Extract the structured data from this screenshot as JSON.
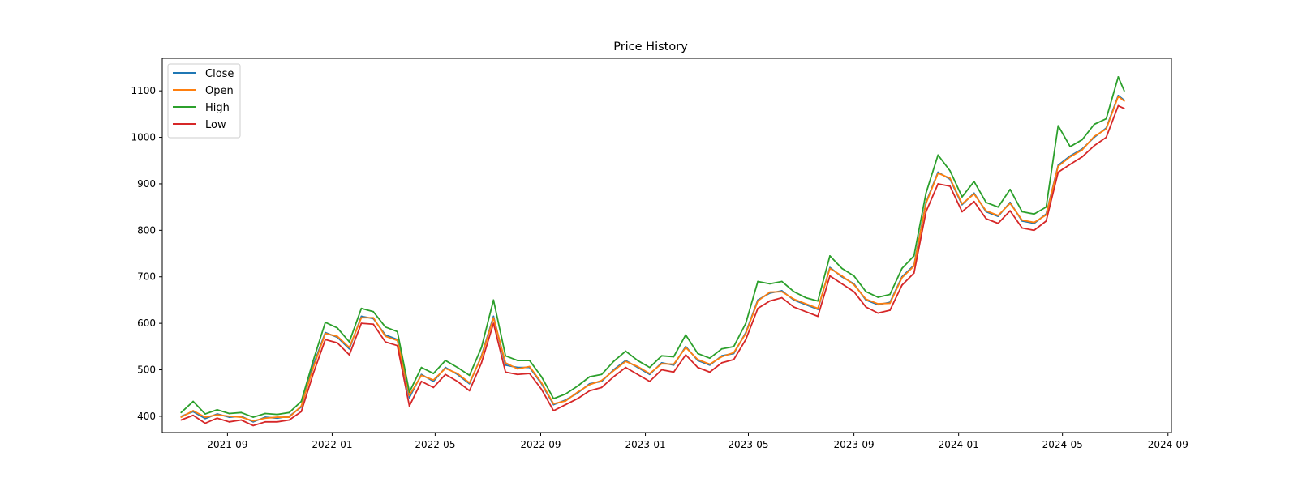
{
  "chart_data": {
    "type": "line",
    "title": "Price History",
    "xlabel": "",
    "ylabel": "",
    "xlim": [
      "2021-06-17",
      "2024-09-05"
    ],
    "ylim": [
      365,
      1170
    ],
    "x_ticks": [
      "2021-09",
      "2022-01",
      "2022-05",
      "2022-09",
      "2023-01",
      "2023-05",
      "2023-09",
      "2024-01",
      "2024-05",
      "2024-09"
    ],
    "y_ticks": [
      400,
      500,
      600,
      700,
      800,
      900,
      1000,
      1100
    ],
    "grid": false,
    "legend_position": "top-left",
    "x": [
      "2021-07-09",
      "2021-07-23",
      "2021-08-06",
      "2021-08-20",
      "2021-09-03",
      "2021-09-17",
      "2021-10-01",
      "2021-10-15",
      "2021-10-29",
      "2021-11-12",
      "2021-11-26",
      "2021-12-10",
      "2021-12-24",
      "2022-01-07",
      "2022-01-21",
      "2022-02-04",
      "2022-02-18",
      "2022-03-04",
      "2022-03-18",
      "2022-04-01",
      "2022-04-15",
      "2022-04-29",
      "2022-05-13",
      "2022-05-27",
      "2022-06-10",
      "2022-06-24",
      "2022-07-08",
      "2022-07-22",
      "2022-08-05",
      "2022-08-19",
      "2022-09-02",
      "2022-09-16",
      "2022-09-30",
      "2022-10-14",
      "2022-10-28",
      "2022-11-11",
      "2022-11-25",
      "2022-12-09",
      "2022-12-23",
      "2023-01-06",
      "2023-01-20",
      "2023-02-03",
      "2023-02-17",
      "2023-03-03",
      "2023-03-17",
      "2023-03-31",
      "2023-04-14",
      "2023-04-28",
      "2023-05-12",
      "2023-05-26",
      "2023-06-09",
      "2023-06-23",
      "2023-07-07",
      "2023-07-21",
      "2023-08-04",
      "2023-08-18",
      "2023-09-01",
      "2023-09-15",
      "2023-09-29",
      "2023-10-13",
      "2023-10-27",
      "2023-11-10",
      "2023-11-24",
      "2023-12-08",
      "2023-12-22",
      "2024-01-05",
      "2024-01-19",
      "2024-02-02",
      "2024-02-16",
      "2024-03-01",
      "2024-03-15",
      "2024-03-29",
      "2024-04-12",
      "2024-04-26",
      "2024-05-10",
      "2024-05-24",
      "2024-06-07",
      "2024-06-21",
      "2024-07-05",
      "2024-07-12"
    ],
    "series": [
      {
        "name": "Close",
        "color": "#1f77b4",
        "values": [
          400,
          410,
          395,
          405,
          398,
          400,
          388,
          398,
          396,
          400,
          420,
          510,
          580,
          570,
          545,
          615,
          610,
          575,
          565,
          440,
          490,
          475,
          505,
          490,
          470,
          530,
          615,
          510,
          505,
          505,
          470,
          425,
          435,
          450,
          470,
          475,
          500,
          520,
          505,
          490,
          515,
          510,
          550,
          520,
          510,
          530,
          535,
          580,
          650,
          665,
          670,
          650,
          640,
          630,
          720,
          700,
          685,
          650,
          640,
          645,
          700,
          725,
          860,
          925,
          910,
          855,
          880,
          840,
          830,
          860,
          820,
          815,
          835,
          940,
          960,
          975,
          1000,
          1020,
          1090,
          1080
        ]
      },
      {
        "name": "Open",
        "color": "#ff7f0e",
        "values": [
          398,
          412,
          398,
          403,
          400,
          398,
          390,
          396,
          398,
          398,
          422,
          505,
          578,
          572,
          548,
          612,
          612,
          572,
          563,
          445,
          488,
          478,
          503,
          492,
          472,
          528,
          612,
          515,
          502,
          507,
          472,
          427,
          433,
          452,
          468,
          477,
          498,
          518,
          507,
          492,
          513,
          512,
          548,
          522,
          512,
          528,
          537,
          578,
          648,
          667,
          668,
          652,
          642,
          632,
          718,
          702,
          683,
          652,
          642,
          643,
          698,
          723,
          858,
          923,
          912,
          857,
          878,
          842,
          832,
          858,
          822,
          817,
          833,
          938,
          958,
          973,
          1002,
          1018,
          1088,
          1078
        ]
      },
      {
        "name": "High",
        "color": "#2ca02c",
        "values": [
          408,
          432,
          405,
          414,
          406,
          408,
          398,
          406,
          404,
          408,
          432,
          520,
          602,
          590,
          560,
          632,
          625,
          592,
          582,
          452,
          505,
          492,
          520,
          505,
          488,
          548,
          650,
          530,
          520,
          520,
          485,
          438,
          448,
          465,
          485,
          490,
          518,
          540,
          520,
          505,
          530,
          528,
          575,
          535,
          525,
          545,
          550,
          600,
          690,
          685,
          690,
          668,
          655,
          648,
          745,
          718,
          702,
          668,
          656,
          662,
          718,
          745,
          880,
          962,
          928,
          872,
          905,
          860,
          850,
          888,
          840,
          835,
          850,
          1025,
          980,
          995,
          1028,
          1040,
          1130,
          1100
        ]
      },
      {
        "name": "Low",
        "color": "#d62728",
        "values": [
          392,
          402,
          385,
          396,
          388,
          392,
          380,
          388,
          388,
          392,
          410,
          492,
          565,
          558,
          532,
          600,
          598,
          560,
          552,
          422,
          475,
          462,
          490,
          475,
          455,
          515,
          600,
          495,
          490,
          492,
          458,
          412,
          425,
          438,
          455,
          462,
          485,
          505,
          490,
          475,
          500,
          495,
          532,
          505,
          495,
          515,
          522,
          565,
          632,
          648,
          655,
          635,
          625,
          615,
          702,
          685,
          668,
          635,
          622,
          628,
          682,
          708,
          840,
          900,
          895,
          840,
          862,
          825,
          815,
          842,
          805,
          800,
          820,
          925,
          942,
          958,
          982,
          1000,
          1068,
          1062
        ]
      }
    ]
  }
}
